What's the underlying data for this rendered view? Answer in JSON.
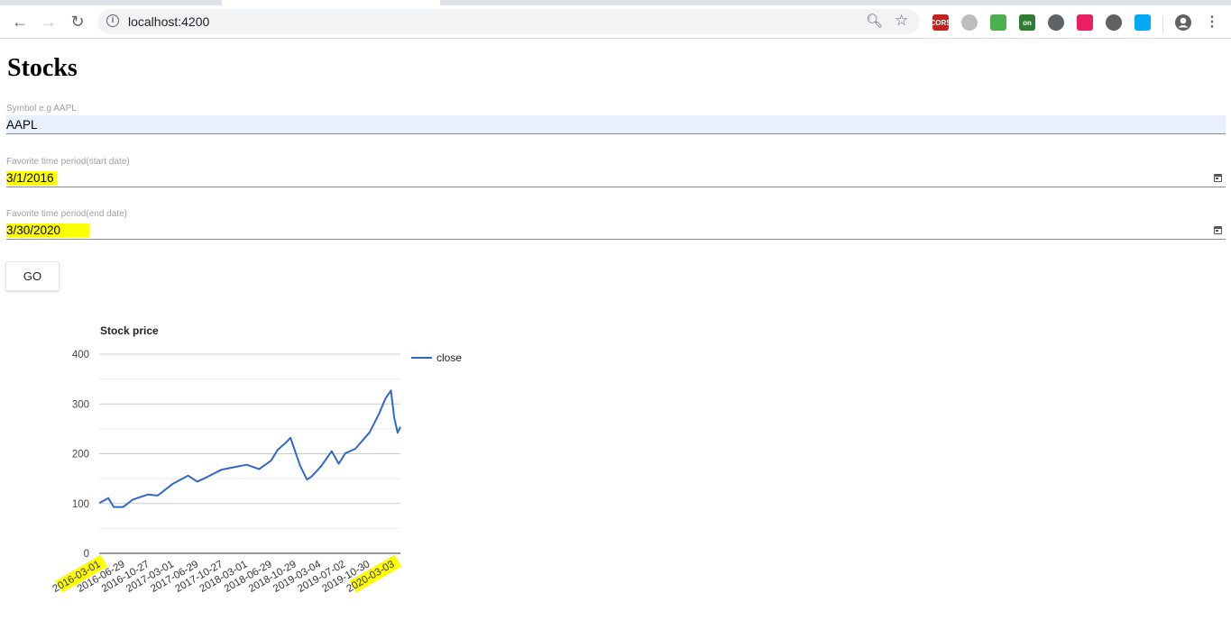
{
  "browser": {
    "url": "localhost:4200",
    "extensions": [
      {
        "name": "cors-extension-icon",
        "label": "CORS",
        "color": "#c5221f"
      },
      {
        "name": "gray-extension-icon",
        "label": "",
        "color": "#bdbdbd"
      },
      {
        "name": "share-arrow-extension-icon",
        "label": "",
        "color": "#4caf50"
      },
      {
        "name": "on-badge-extension-icon",
        "label": "on",
        "color": "#2e7d32"
      },
      {
        "name": "refresh-circle-extension-icon",
        "label": "",
        "color": "#5f6368"
      },
      {
        "name": "color-wheel-extension-icon",
        "label": "",
        "color": "#e91e63"
      },
      {
        "name": "dark-circle-extension-icon",
        "label": "",
        "color": "#616161"
      },
      {
        "name": "windows-extension-icon",
        "label": "",
        "color": "#03a9f4"
      }
    ]
  },
  "page": {
    "title": "Stocks",
    "symbol": {
      "label": "Symbol e.g AAPL",
      "value": "AAPL"
    },
    "start_date": {
      "label": "Favorite time period(start date)",
      "value": "3/1/2016"
    },
    "end_date": {
      "label": "Favorite time period(end date)",
      "value": "3/30/2020"
    },
    "go_label": "GO"
  },
  "chart_data": {
    "type": "line",
    "title": "Stock price",
    "ylim": [
      0,
      400
    ],
    "yticks": [
      0,
      100,
      200,
      300,
      400
    ],
    "x_tick_labels": [
      "2016-03-01",
      "2016-06-29",
      "2016-10-27",
      "2017-03-01",
      "2017-06-29",
      "2017-10-27",
      "2018-03-01",
      "2018-06-29",
      "2018-10-29",
      "2019-03-04",
      "2019-07-02",
      "2019-10-30",
      "2020-03-03"
    ],
    "highlighted_ticks": [
      "2016-03-01",
      "2020-03-03"
    ],
    "legend_position": "right",
    "grid": true,
    "series": [
      {
        "name": "close",
        "color": "#3366cc",
        "x": [
          "2016-03-01",
          "2016-04-15",
          "2016-05-12",
          "2016-06-27",
          "2016-08-15",
          "2016-10-27",
          "2016-12-15",
          "2017-03-01",
          "2017-05-15",
          "2017-06-29",
          "2017-08-01",
          "2017-10-27",
          "2017-12-15",
          "2018-03-01",
          "2018-05-01",
          "2018-06-29",
          "2018-08-01",
          "2018-09-10",
          "2018-10-03",
          "2018-11-20",
          "2018-12-24",
          "2019-01-15",
          "2019-03-04",
          "2019-04-25",
          "2019-05-30",
          "2019-07-02",
          "2019-08-20",
          "2019-10-30",
          "2019-12-15",
          "2020-01-15",
          "2020-02-12",
          "2020-02-28",
          "2020-03-16",
          "2020-03-30"
        ],
        "y": [
          101,
          111,
          93,
          93,
          108,
          118,
          116,
          140,
          156,
          144,
          150,
          168,
          172,
          178,
          169,
          186,
          208,
          222,
          232,
          176,
          148,
          154,
          175,
          205,
          180,
          201,
          210,
          243,
          280,
          310,
          327,
          273,
          242,
          254
        ]
      }
    ]
  }
}
